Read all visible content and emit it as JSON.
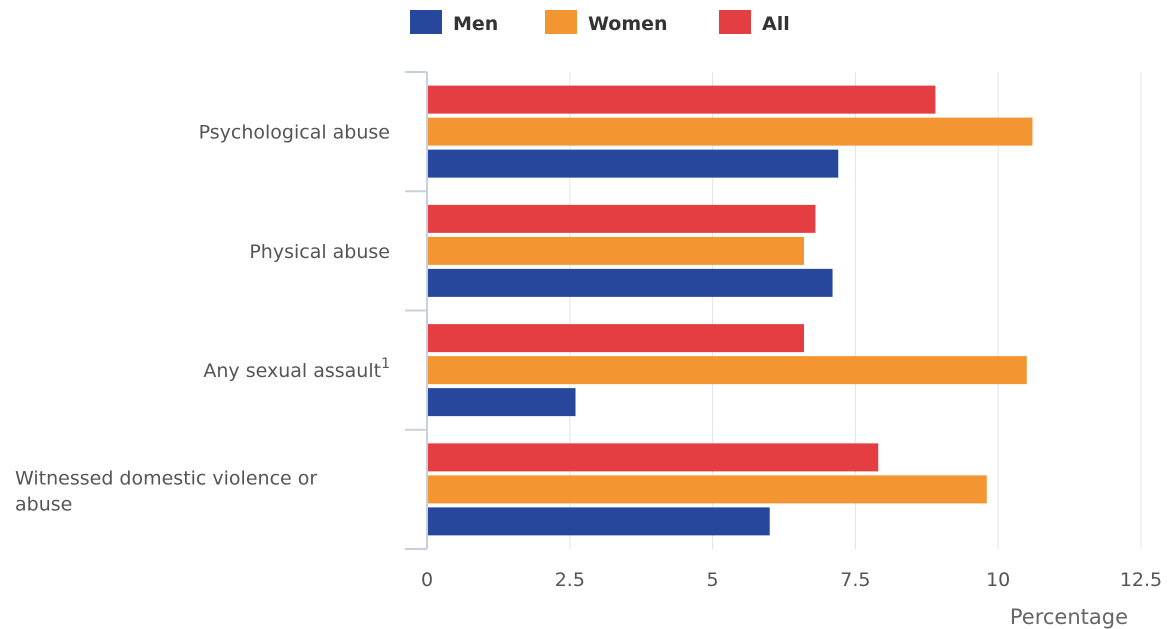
{
  "chart_data": {
    "type": "bar",
    "orientation": "horizontal",
    "categories": [
      "Psychological abuse",
      "Physical abuse",
      "Any sexual assault",
      "Witnessed domestic violence or abuse"
    ],
    "category_superscripts": [
      "",
      "",
      "1",
      ""
    ],
    "series": [
      {
        "name": "Men",
        "color": "#26479b",
        "values": [
          7.2,
          7.1,
          2.6,
          6.0
        ]
      },
      {
        "name": "Women",
        "color": "#f39530",
        "values": [
          10.6,
          6.6,
          10.5,
          9.8
        ]
      },
      {
        "name": "All",
        "color": "#e43e42",
        "values": [
          8.9,
          6.8,
          6.6,
          7.9
        ]
      }
    ],
    "xlabel": "Percentage",
    "ylabel": "",
    "xlim": [
      0,
      12.5
    ],
    "xticks": [
      "0",
      "2.5",
      "5",
      "7.5",
      "10",
      "12.5"
    ],
    "grid": true,
    "legend_position": "top"
  }
}
